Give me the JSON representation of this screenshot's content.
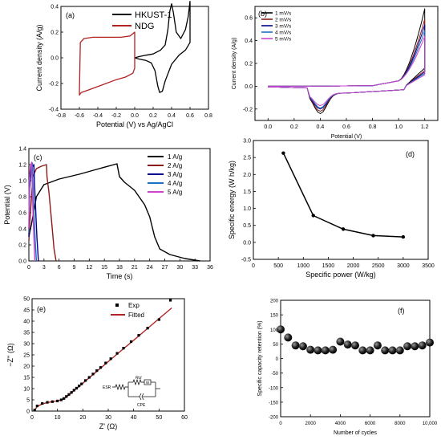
{
  "chart_data": [
    {
      "id": "a",
      "type": "line",
      "panel_label": "(a)",
      "xlabel": "Potential (V) vs Ag/AgCl",
      "ylabel": "Current density (A/g)",
      "xlim": [
        -0.8,
        0.8
      ],
      "ylim": [
        -0.4,
        0.4
      ],
      "xticks": [
        -0.8,
        -0.6,
        -0.4,
        -0.2,
        0.0,
        0.2,
        0.4,
        0.6,
        0.8
      ],
      "yticks": [
        -0.4,
        -0.2,
        0.0,
        0.2,
        0.4
      ],
      "xtick_labels": [
        "-0.8",
        "-0.6",
        "-0.4",
        "-0.2",
        "0.0",
        "0.2",
        "0.4",
        "0.6",
        "0.8"
      ],
      "ytick_labels": [
        "-0.4",
        "-0.2",
        "0.0",
        "0.2",
        "0.4"
      ],
      "legend": "top-right",
      "series": [
        {
          "name": "HKUST-1",
          "color": "#000000",
          "x": [
            0.0,
            0.05,
            0.12,
            0.2,
            0.28,
            0.33,
            0.36,
            0.38,
            0.4,
            0.42,
            0.45,
            0.5,
            0.55,
            0.58,
            0.6,
            0.6,
            0.55,
            0.48,
            0.4,
            0.33,
            0.3,
            0.27,
            0.25,
            0.22,
            0.18,
            0.12,
            0.05,
            0.0,
            0.0
          ],
          "y": [
            0.0,
            0.01,
            0.02,
            0.03,
            0.06,
            0.1,
            0.22,
            0.36,
            0.42,
            0.35,
            0.2,
            0.15,
            0.22,
            0.32,
            0.44,
            0.12,
            0.06,
            0.02,
            -0.05,
            -0.18,
            -0.26,
            -0.27,
            -0.22,
            -0.1,
            -0.04,
            -0.02,
            -0.01,
            0.0,
            0.0
          ]
        },
        {
          "name": "NDG",
          "color": "#b22222",
          "x": [
            -0.6,
            -0.59,
            -0.55,
            -0.45,
            -0.3,
            -0.15,
            -0.05,
            0.0,
            0.0,
            -0.02,
            -0.1,
            -0.2,
            -0.35,
            -0.5,
            -0.58,
            -0.6,
            -0.6
          ],
          "y": [
            -0.28,
            0.12,
            0.15,
            0.16,
            0.16,
            0.16,
            0.17,
            0.2,
            -0.08,
            -0.12,
            -0.15,
            -0.17,
            -0.21,
            -0.25,
            -0.27,
            -0.29,
            -0.28
          ]
        }
      ]
    },
    {
      "id": "b",
      "type": "line",
      "panel_label": "(b)",
      "xlabel": "Potential (V)",
      "ylabel": "Current density (A/g)",
      "xlim": [
        -0.1,
        1.3
      ],
      "ylim": [
        -0.3,
        0.7
      ],
      "xticks": [
        0.0,
        0.2,
        0.4,
        0.6,
        0.8,
        1.0,
        1.2
      ],
      "yticks": [
        -0.2,
        0.0,
        0.2,
        0.4,
        0.6
      ],
      "xtick_labels": [
        "0.0",
        "0.2",
        "0.4",
        "0.6",
        "0.8",
        "1.0",
        "1.2"
      ],
      "ytick_labels": [
        "-0.2",
        "0.0",
        "0.2",
        "0.4",
        "0.6"
      ],
      "legend": "top-left",
      "series": [
        {
          "name": "1 mV/s",
          "color": "#000000",
          "peak": 0.64,
          "trough": -0.24
        },
        {
          "name": "2 mV/s",
          "color": "#8b1a1a",
          "peak": 0.55,
          "trough": -0.22
        },
        {
          "name": "3 mV/s",
          "color": "#00008b",
          "peak": 0.5,
          "trough": -0.2
        },
        {
          "name": "4 mV/s",
          "color": "#1e6fbf",
          "peak": 0.45,
          "trough": -0.19
        },
        {
          "name": "5 mV/s",
          "color": "#cc44cc",
          "peak": 0.4,
          "trough": -0.17
        }
      ]
    },
    {
      "id": "c",
      "type": "line",
      "panel_label": "(c)",
      "xlabel": "Time (s)",
      "ylabel": "Potential (V)",
      "xlim": [
        0,
        36
      ],
      "ylim": [
        0.0,
        1.4
      ],
      "xticks": [
        0,
        3,
        6,
        9,
        12,
        15,
        18,
        21,
        24,
        27,
        30,
        33,
        36
      ],
      "yticks": [
        0.0,
        0.2,
        0.4,
        0.6,
        0.8,
        1.0,
        1.2,
        1.4
      ],
      "xtick_labels": [
        "0",
        "3",
        "6",
        "9",
        "12",
        "15",
        "18",
        "21",
        "24",
        "27",
        "30",
        "33",
        "36"
      ],
      "ytick_labels": [
        "0.0",
        "0.2",
        "0.4",
        "0.6",
        "0.8",
        "1.0",
        "1.2",
        "1.4"
      ],
      "legend": "top-right",
      "series": [
        {
          "name": "1 A/g",
          "color": "#000000",
          "x": [
            0,
            0.5,
            1.5,
            3,
            6,
            10,
            14,
            17.5,
            18,
            19,
            21,
            23,
            24,
            25,
            26,
            28,
            31,
            34
          ],
          "y": [
            0.3,
            0.45,
            0.8,
            0.95,
            1.02,
            1.08,
            1.15,
            1.21,
            1.05,
            0.98,
            0.88,
            0.7,
            0.55,
            0.3,
            0.15,
            0.08,
            0.03,
            0.0
          ]
        },
        {
          "name": "2 A/g",
          "color": "#8b1a1a",
          "x": [
            0,
            0.2,
            0.8,
            1.5,
            2.5,
            3.5,
            3.6,
            4.0,
            4.5,
            5.0,
            5.4
          ],
          "y": [
            0.25,
            0.5,
            1.05,
            1.15,
            1.18,
            1.2,
            1.05,
            0.85,
            0.5,
            0.15,
            0.0
          ]
        },
        {
          "name": "3 A/g",
          "color": "#00008b",
          "x": [
            0,
            0.15,
            0.5,
            1.0,
            1.1,
            1.3,
            1.6,
            1.9
          ],
          "y": [
            0.3,
            0.9,
            1.15,
            1.2,
            1.0,
            0.7,
            0.3,
            0.0
          ]
        },
        {
          "name": "4 A/g",
          "color": "#1e6fbf",
          "x": [
            0,
            0.1,
            0.35,
            0.7,
            0.8,
            1.0,
            1.3,
            1.5
          ],
          "y": [
            0.35,
            0.95,
            1.15,
            1.22,
            1.0,
            0.6,
            0.2,
            0.0
          ]
        },
        {
          "name": "5 A/g",
          "color": "#cc44cc",
          "x": [
            0,
            0.08,
            0.3,
            0.55,
            0.65,
            0.85,
            1.05,
            1.2
          ],
          "y": [
            0.4,
            1.0,
            1.18,
            1.23,
            1.0,
            0.55,
            0.2,
            0.0
          ]
        }
      ]
    },
    {
      "id": "d",
      "type": "line",
      "panel_label": "(d)",
      "xlabel": "Specific power (W/kg)",
      "ylabel": "Specific energy (W h/kg)",
      "xlim": [
        0,
        3500
      ],
      "ylim": [
        -0.5,
        3.0
      ],
      "xticks": [
        0,
        500,
        1000,
        1500,
        2000,
        2500,
        3000,
        3500
      ],
      "yticks": [
        -0.5,
        0.0,
        0.5,
        1.0,
        1.5,
        2.0,
        2.5,
        3.0
      ],
      "xtick_labels": [
        "0",
        "500",
        "1000",
        "1500",
        "2000",
        "2500",
        "3000",
        "3500"
      ],
      "ytick_labels": [
        "-0.5",
        "0.0",
        "0.5",
        "1.0",
        "1.5",
        "2.0",
        "2.5",
        "3.0"
      ],
      "series": [
        {
          "name": "",
          "color": "#000000",
          "x": [
            600,
            1200,
            1800,
            2400,
            3000
          ],
          "y": [
            2.63,
            0.79,
            0.39,
            0.2,
            0.16
          ]
        }
      ]
    },
    {
      "id": "e",
      "type": "scatter",
      "panel_label": "(e)",
      "xlabel": "Z' (Ω)",
      "ylabel": "−Z'' (Ω)",
      "xlim": [
        0,
        60
      ],
      "ylim": [
        0,
        50
      ],
      "xticks": [
        0,
        10,
        20,
        30,
        40,
        50,
        60
      ],
      "yticks": [
        0,
        5,
        10,
        15,
        20,
        25,
        30,
        35,
        40,
        45,
        50
      ],
      "xtick_labels": [
        "0",
        "10",
        "20",
        "30",
        "40",
        "50",
        "60"
      ],
      "ytick_labels": [
        "0",
        "5",
        "10",
        "15",
        "20",
        "25",
        "30",
        "35",
        "40",
        "45",
        "50"
      ],
      "legend": "top-left",
      "circuit_labels": {
        "esr": "ESR",
        "rct": "Rct",
        "w": "W",
        "cpe": "CPE"
      },
      "series": [
        {
          "name": "Exp",
          "color": "#000000",
          "marker": "square",
          "x": [
            1,
            2,
            4,
            6,
            8,
            10,
            11.5,
            12.5,
            13.5,
            14.5,
            15.5,
            16.5,
            17.5,
            18.5,
            19.5,
            21,
            22.5,
            24,
            25.5,
            27,
            29,
            31,
            33.5,
            36,
            39,
            42,
            45.5,
            50,
            54.5
          ],
          "y": [
            0.5,
            2.3,
            3.4,
            3.9,
            4.2,
            4.5,
            5.0,
            5.6,
            6.5,
            7.4,
            8.3,
            9.3,
            10.2,
            11.2,
            12.1,
            13.6,
            15.0,
            16.5,
            18.0,
            19.4,
            21.4,
            23.3,
            25.7,
            28.0,
            30.9,
            33.7,
            36.9,
            40.7,
            49.3
          ]
        },
        {
          "name": "Fitted",
          "color": "#b22222",
          "x": [
            0.8,
            2,
            4,
            6,
            8,
            10,
            11.5,
            13,
            15,
            20,
            25,
            30,
            35,
            40,
            45,
            50,
            55
          ],
          "y": [
            0.0,
            2.0,
            3.2,
            3.8,
            4.2,
            4.6,
            5.0,
            5.8,
            7.6,
            12.4,
            17.2,
            22.0,
            26.8,
            31.5,
            36.3,
            41.1,
            45.9
          ]
        }
      ]
    },
    {
      "id": "f",
      "type": "scatter",
      "panel_label": "(f)",
      "xlabel": "Number of cycles",
      "ylabel": "Specific capacity retention (%)",
      "xlim": [
        0,
        10000
      ],
      "ylim": [
        -200,
        200
      ],
      "xticks": [
        0,
        2000,
        4000,
        6000,
        8000,
        10000
      ],
      "xtick_labels": [
        "0",
        "2000",
        "4000",
        "6000",
        "8000",
        "10,000"
      ],
      "yticks": [
        -200,
        -150,
        -100,
        -50,
        0,
        50,
        100,
        150,
        200
      ],
      "ytick_labels": [
        "-200",
        "-150",
        "-100",
        "-50",
        "0",
        "50",
        "100",
        "150",
        "200"
      ],
      "series": [
        {
          "name": "",
          "color": "#000000",
          "marker": "sphere",
          "x": [
            0,
            500,
            1000,
            1500,
            2000,
            2500,
            3000,
            3500,
            4000,
            4500,
            5000,
            5500,
            6000,
            6500,
            7000,
            7500,
            8000,
            8500,
            9000,
            9500,
            10000
          ],
          "y": [
            100,
            72,
            45,
            42,
            30,
            28,
            28,
            30,
            58,
            48,
            45,
            28,
            28,
            45,
            28,
            28,
            28,
            42,
            42,
            45,
            55
          ]
        }
      ]
    }
  ]
}
